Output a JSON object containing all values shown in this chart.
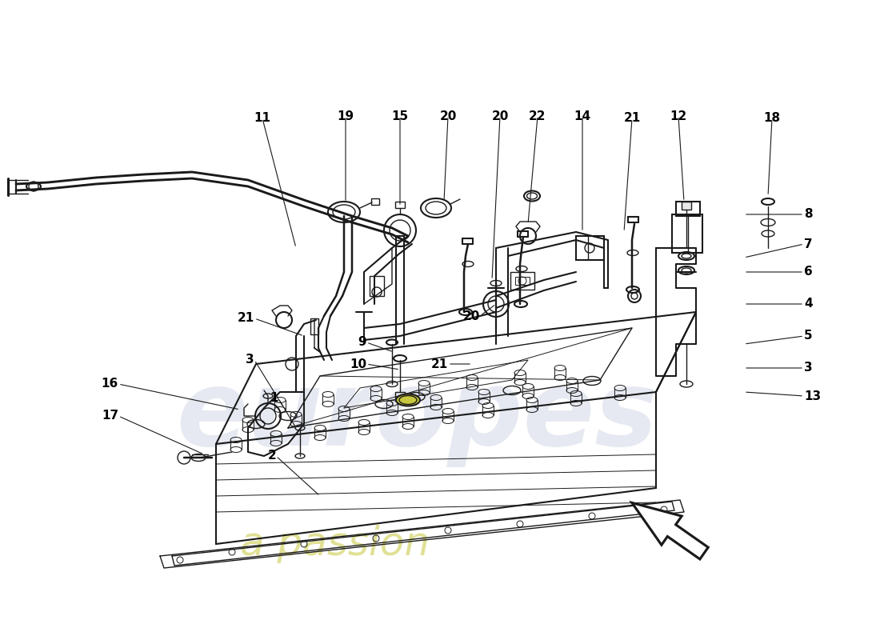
{
  "bg_color": "#ffffff",
  "line_color": "#1a1a1a",
  "label_color": "#000000",
  "watermark_color": "#c8cfe0",
  "accent_color": "#c8c840",
  "fig_width": 11.0,
  "fig_height": 8.0
}
